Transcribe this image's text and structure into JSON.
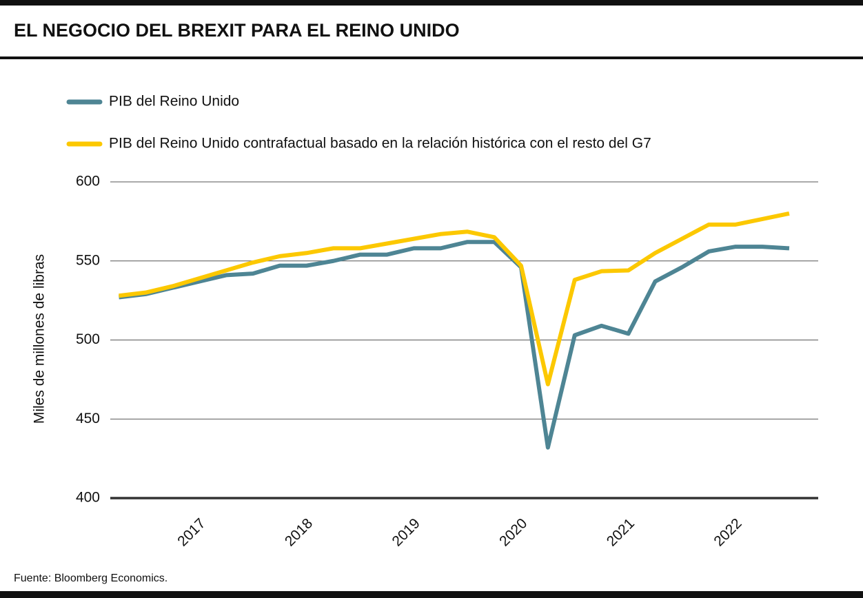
{
  "chart_data": {
    "type": "line",
    "title": "EL NEGOCIO DEL BREXIT PARA EL REINO UNIDO",
    "y_label": "Miles de millones de libras",
    "source": "Fuente: Bloomberg Economics.",
    "x": [
      2016.25,
      2016.5,
      2016.75,
      2017,
      2017.25,
      2017.5,
      2017.75,
      2018,
      2018.25,
      2018.5,
      2018.75,
      2019,
      2019.25,
      2019.5,
      2019.75,
      2020,
      2020.25,
      2020.5,
      2020.75,
      2021,
      2021.25,
      2021.5,
      2021.75,
      2022,
      2022.25,
      2022.5
    ],
    "series": [
      {
        "name": "PIB del Reino Unido",
        "color": "#4e8594",
        "values": [
          527,
          529,
          533,
          537,
          541,
          542,
          547,
          547,
          550,
          554,
          554,
          558,
          558,
          562,
          562,
          546,
          432,
          503,
          509,
          504,
          537,
          546,
          556,
          559,
          559,
          558
        ]
      },
      {
        "name": "PIB del Reino Unido contrafactual basado en la relación histórica con el resto del G7",
        "color": "#fcc800",
        "values": [
          528,
          530,
          534,
          539,
          544,
          549,
          553,
          555,
          558,
          558,
          561,
          564,
          567,
          568.5,
          565,
          547,
          472,
          538,
          543.5,
          544,
          555,
          564,
          573,
          573,
          576.5,
          580
        ]
      }
    ],
    "xlim": [
      2016.17,
      2022.77
    ],
    "xticks": [
      2017,
      2018,
      2019,
      2020,
      2021,
      2022
    ],
    "ylim": [
      400,
      600
    ],
    "yticks": [
      400,
      450,
      500,
      550,
      600
    ],
    "grid": true
  }
}
